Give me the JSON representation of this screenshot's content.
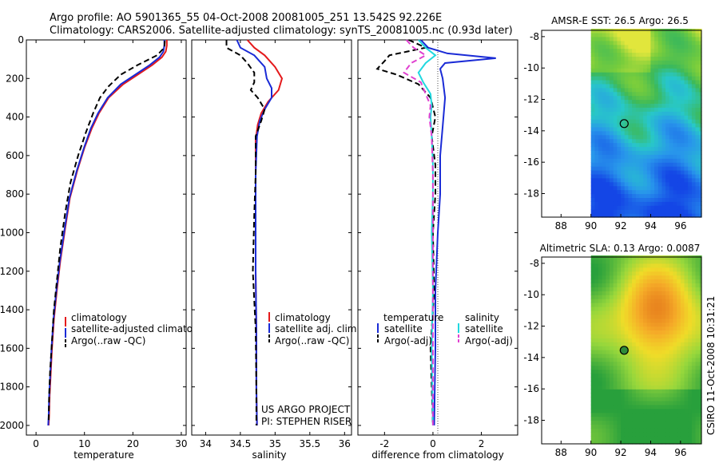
{
  "header": {
    "line1": "Argo profile: AO 5901365_55 04-Oct-2008 20081005_251 13.542S 92.226E",
    "line2": "Climatology: CARS2006. Satellite-adjusted climatology: synTS_20081005.nc (0.93d later)"
  },
  "colors": {
    "climatology": "#e41a1c",
    "satellite": "#1a2bd6",
    "argo": "#000000",
    "salinity_sat": "#22d8e0",
    "salinity_argo": "#e040d0"
  },
  "chart_data": [
    {
      "type": "line",
      "xlabel": "temperature",
      "xlim": [
        -2,
        31
      ],
      "ylim": [
        2050,
        0
      ],
      "xticks": [
        "0",
        "10",
        "20",
        "30"
      ],
      "yticks": [
        "0",
        "200",
        "400",
        "600",
        "800",
        "1000",
        "1200",
        "1400",
        "1600",
        "1800",
        "2000"
      ],
      "legend": [
        "climatology",
        "satellite-adjusted climatology",
        "Argo(..raw -QC)"
      ],
      "series": [
        {
          "name": "climatology",
          "x": [
            27,
            27,
            26.8,
            26,
            24,
            21,
            18,
            15,
            13,
            11.5,
            10,
            8.5,
            7,
            6,
            5,
            4.3,
            3.7,
            3.3,
            3,
            2.8,
            2.7,
            2.6
          ],
          "y": [
            0,
            30,
            60,
            90,
            130,
            180,
            230,
            300,
            380,
            460,
            560,
            680,
            820,
            980,
            1150,
            1300,
            1450,
            1600,
            1750,
            1850,
            1950,
            2000
          ]
        },
        {
          "name": "satellite",
          "x": [
            26.5,
            26.5,
            26.3,
            25.5,
            23.5,
            20.5,
            17.5,
            14.8,
            12.8,
            11.3,
            9.9,
            8.4,
            6.9,
            5.9,
            4.9,
            4.2,
            3.6,
            3.2,
            2.9,
            2.7,
            2.6,
            2.5
          ],
          "y": [
            0,
            30,
            60,
            90,
            130,
            180,
            230,
            300,
            380,
            460,
            560,
            680,
            820,
            980,
            1150,
            1300,
            1450,
            1600,
            1750,
            1850,
            1950,
            2000
          ]
        },
        {
          "name": "Argo",
          "x": [
            26.6,
            26.5,
            25,
            21,
            17.5,
            15,
            13.2,
            11.8,
            10.3,
            8.7,
            7.1,
            6,
            5,
            4.3,
            3.7,
            3.3,
            2.9,
            2.7,
            2.6
          ],
          "y": [
            5,
            40,
            80,
            130,
            180,
            240,
            300,
            380,
            480,
            600,
            740,
            900,
            1080,
            1250,
            1400,
            1560,
            1720,
            1850,
            1980
          ]
        }
      ]
    },
    {
      "type": "line",
      "xlabel": "salinity",
      "xlim": [
        33.8,
        36.1
      ],
      "ylim": [
        2050,
        0
      ],
      "xticks": [
        "34",
        "34.5",
        "35",
        "35.5",
        "36"
      ],
      "legend": [
        "climatology",
        "satellite adj. clim.",
        "Argo(..raw -QC)"
      ],
      "credit": [
        "US ARGO PROJECT",
        "PI: STEPHEN RISER"
      ],
      "series": [
        {
          "name": "climatology",
          "x": [
            34.6,
            34.7,
            34.85,
            35.0,
            35.1,
            35.05,
            34.9,
            34.8,
            34.75,
            34.72,
            34.72,
            34.72,
            34.72,
            34.73,
            34.73,
            34.74
          ],
          "y": [
            0,
            40,
            80,
            140,
            200,
            260,
            320,
            380,
            440,
            520,
            700,
            900,
            1200,
            1500,
            1800,
            2000
          ]
        },
        {
          "name": "satellite",
          "x": [
            34.45,
            34.5,
            34.7,
            34.85,
            34.88,
            34.95,
            34.95,
            34.85,
            34.78,
            34.74,
            34.72,
            34.72,
            34.72,
            34.73,
            34.73,
            34.74
          ],
          "y": [
            0,
            40,
            80,
            140,
            200,
            250,
            300,
            360,
            420,
            500,
            700,
            900,
            1200,
            1500,
            1800,
            2000
          ]
        },
        {
          "name": "Argo",
          "x": [
            34.3,
            34.3,
            34.5,
            34.6,
            34.7,
            34.7,
            34.65,
            34.75,
            34.85,
            34.8,
            34.72,
            34.72,
            34.7,
            34.68,
            34.72,
            34.73,
            34.73
          ],
          "y": [
            0,
            40,
            80,
            120,
            170,
            220,
            260,
            300,
            360,
            420,
            500,
            700,
            900,
            1200,
            1500,
            1800,
            2000
          ]
        }
      ]
    },
    {
      "type": "line",
      "xlabel": "difference from climatology",
      "xlim": [
        -3.1,
        3.5
      ],
      "ylim": [
        2050,
        0
      ],
      "xticks": [
        "-2",
        "0",
        "2"
      ],
      "legend_headers": [
        "temperature",
        "salinity"
      ],
      "legend": [
        "satellite",
        "Argo(-adj)",
        "satellite",
        "Argo(-adj)"
      ],
      "series": [
        {
          "name": "temperature satellite",
          "x": [
            -0.5,
            -0.2,
            0.6,
            2.6,
            0.5,
            0.3,
            0.4,
            0.5,
            0.4,
            0.3,
            0.3,
            0.2,
            0.1,
            0.1,
            0.05
          ],
          "y": [
            0,
            40,
            70,
            95,
            120,
            150,
            200,
            300,
            450,
            600,
            800,
            1000,
            1300,
            1600,
            2000
          ]
        },
        {
          "name": "temperature Argo(-adj)",
          "x": [
            -1.0,
            -0.3,
            -1.8,
            -2.0,
            -2.3,
            -1.5,
            -0.6,
            -0.1,
            0.1,
            -0.05,
            0.1,
            0.1,
            0.0,
            0.05,
            -0.1,
            0.0
          ],
          "y": [
            0,
            40,
            80,
            110,
            150,
            180,
            230,
            300,
            400,
            500,
            650,
            800,
            1000,
            1300,
            1600,
            2000
          ]
        },
        {
          "name": "salinity satellite",
          "x": [
            -0.6,
            -0.3,
            0.1,
            -0.3,
            -0.6,
            -0.4,
            -0.1,
            -0.05,
            -0.1,
            -0.05,
            0.0,
            0.0,
            -0.05,
            0.0,
            -0.05,
            0.0
          ],
          "y": [
            0,
            40,
            80,
            120,
            170,
            220,
            280,
            340,
            400,
            500,
            650,
            800,
            1000,
            1300,
            1600,
            2000
          ]
        },
        {
          "name": "salinity Argo(-adj)",
          "x": [
            -1.1,
            -0.8,
            -0.3,
            -0.9,
            -1.2,
            -0.5,
            -0.3,
            -0.1,
            -0.15,
            -0.05,
            0.0,
            0.0,
            0.0,
            0.0
          ],
          "y": [
            0,
            40,
            80,
            120,
            170,
            220,
            280,
            340,
            400,
            500,
            700,
            1000,
            1500,
            2000
          ]
        }
      ]
    },
    {
      "type": "heatmap",
      "title": "AMSR-E SST: 26.5 Argo: 26.5",
      "xlim": [
        86.7,
        97.4
      ],
      "ylim": [
        -19.5,
        -7.6
      ],
      "xticks": [
        "88",
        "90",
        "92",
        "94",
        "96"
      ],
      "yticks": [
        "-8",
        "-10",
        "-12",
        "-14",
        "-16",
        "-18"
      ],
      "data_start_lon": 90,
      "argo_position": {
        "lon": 92.226,
        "lat": -13.542
      }
    },
    {
      "type": "heatmap",
      "title": "Altimetric SLA: 0.13 Argo: 0.0087",
      "xlim": [
        86.7,
        97.4
      ],
      "ylim": [
        -19.5,
        -7.6
      ],
      "xticks": [
        "88",
        "90",
        "92",
        "94",
        "96"
      ],
      "yticks": [
        "-8",
        "-10",
        "-12",
        "-14",
        "-16",
        "-18"
      ],
      "data_start_lon": 90,
      "argo_position": {
        "lon": 92.226,
        "lat": -13.542
      }
    }
  ],
  "footer": {
    "credit": "CSIRO 11-Oct-2008 10:31:21"
  }
}
